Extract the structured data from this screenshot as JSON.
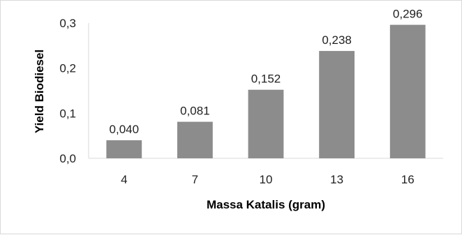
{
  "chart_data": {
    "type": "bar",
    "categories": [
      "4",
      "7",
      "10",
      "13",
      "16"
    ],
    "values": [
      0.04,
      0.081,
      0.152,
      0.238,
      0.296
    ],
    "value_labels": [
      "0,040",
      "0,081",
      "0,152",
      "0,238",
      "0,296"
    ],
    "title": "",
    "xlabel": "Massa Katalis (gram)",
    "ylabel": "Yield Biodiesel",
    "ylim": [
      0,
      0.3
    ],
    "yticks": [
      0,
      0.1,
      0.2,
      0.3
    ],
    "ytick_labels": [
      "0,0",
      "0,1",
      "0,2",
      "0,3"
    ],
    "grid": false,
    "legend": "none",
    "bar_color": "#8c8c8c"
  }
}
